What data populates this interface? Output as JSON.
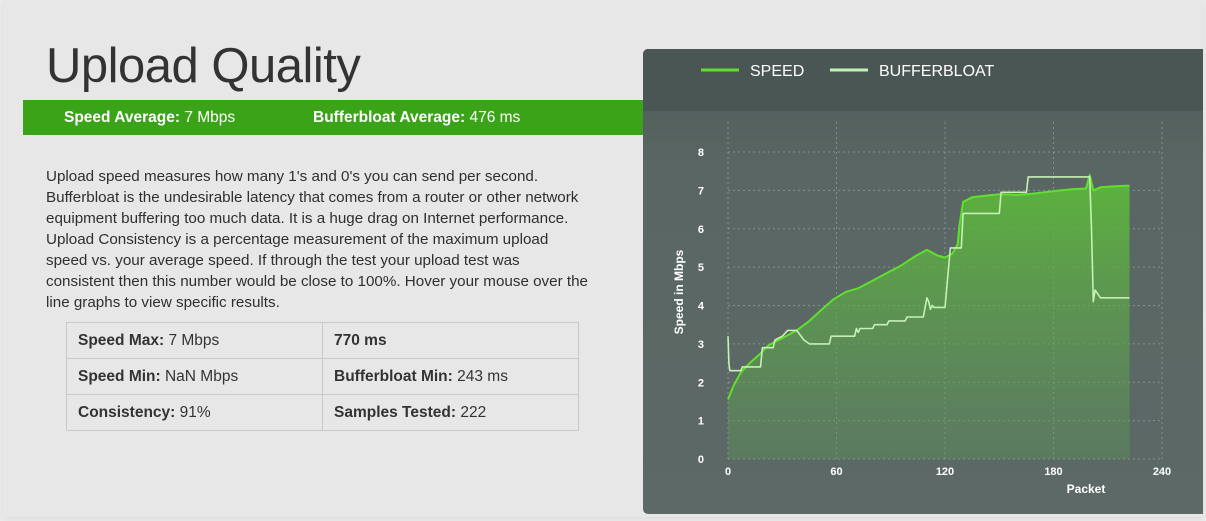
{
  "page": {
    "title": "Upload Quality"
  },
  "summary": {
    "speed_label": "Speed Average:",
    "speed_value": "7 Mbps",
    "bufferbloat_label": "Bufferbloat Average:",
    "bufferbloat_value": "476 ms"
  },
  "description": "Upload speed measures how many 1's and 0's you can send per second. Bufferbloat is the undesirable latency that comes from a router or other network equipment buffering too much data. It is a huge drag on Internet performance. Upload Consistency is a percentage measurement of the maximum upload speed vs. your average speed. If through the test your upload test was consistent then this number would be close to 100%. Hover your mouse over the line graphs to view specific results.",
  "stats": {
    "speed_max_label": "Speed Max:",
    "speed_max_value": "7 Mbps",
    "bufferbloat_max_label": "770 ms",
    "speed_min_label": "Speed Min:",
    "speed_min_value": "NaN Mbps",
    "bufferbloat_min_label": "Bufferbloat Min:",
    "bufferbloat_min_value": "243 ms",
    "consistency_label": "Consistency:",
    "consistency_value": "91%",
    "samples_label": "Samples Tested:",
    "samples_value": "222"
  },
  "colors": {
    "speed": "#5fe02c",
    "bufferbloat": "#c6f0b4",
    "summary_bar": "#3aa318",
    "chart_bg": "#5d6966"
  },
  "chart_data": {
    "type": "line",
    "xlabel": "Packet",
    "ylabel": "Speed in Mbps",
    "xlim": [
      0,
      240
    ],
    "ylim": [
      0,
      8
    ],
    "xticks": [
      0,
      60,
      120,
      180,
      240
    ],
    "yticks": [
      0,
      1,
      2,
      3,
      4,
      5,
      6,
      7,
      8
    ],
    "grid": true,
    "legend_position": "top",
    "series": [
      {
        "name": "SPEED",
        "fill": true,
        "x": [
          0,
          3,
          7,
          12,
          18,
          22,
          28,
          32,
          38,
          45,
          52,
          58,
          65,
          72,
          80,
          88,
          96,
          104,
          110,
          112,
          116,
          120,
          124,
          127,
          128,
          130,
          135,
          140,
          150,
          160,
          170,
          180,
          190,
          198,
          200,
          202,
          206,
          212,
          220,
          222
        ],
        "values": [
          1.55,
          1.9,
          2.25,
          2.5,
          2.75,
          2.95,
          3.1,
          3.2,
          3.35,
          3.6,
          3.9,
          4.15,
          4.35,
          4.45,
          4.65,
          4.85,
          5.05,
          5.3,
          5.45,
          5.4,
          5.3,
          5.25,
          5.35,
          5.6,
          6.1,
          6.7,
          6.82,
          6.85,
          6.9,
          6.88,
          6.92,
          6.98,
          7.03,
          7.05,
          7.4,
          7.0,
          7.08,
          7.1,
          7.12,
          7.12
        ]
      },
      {
        "name": "BUFFERBLOAT",
        "fill": false,
        "x": [
          0,
          0.5,
          1,
          7,
          8,
          18,
          19,
          25,
          26,
          30,
          33,
          38,
          42,
          45,
          56,
          57,
          70,
          71,
          72,
          73,
          80,
          81,
          88,
          89,
          98,
          99,
          108,
          110,
          111,
          112,
          113,
          114,
          120,
          122,
          123,
          129,
          130,
          133,
          134,
          150,
          151,
          165,
          166,
          200,
          201,
          202,
          203,
          206,
          212,
          222
        ],
        "values": [
          3.2,
          2.5,
          2.3,
          2.3,
          2.4,
          2.4,
          2.9,
          2.9,
          3.1,
          3.2,
          3.35,
          3.35,
          3.1,
          3.0,
          3.0,
          3.2,
          3.2,
          3.4,
          3.3,
          3.4,
          3.4,
          3.5,
          3.5,
          3.6,
          3.6,
          3.7,
          3.7,
          4.2,
          4.1,
          3.9,
          4.0,
          3.95,
          3.95,
          5.0,
          5.5,
          5.5,
          6.4,
          6.4,
          6.4,
          6.4,
          6.95,
          6.95,
          7.35,
          7.35,
          6.0,
          4.1,
          4.4,
          4.2,
          4.2,
          4.2
        ]
      }
    ]
  }
}
